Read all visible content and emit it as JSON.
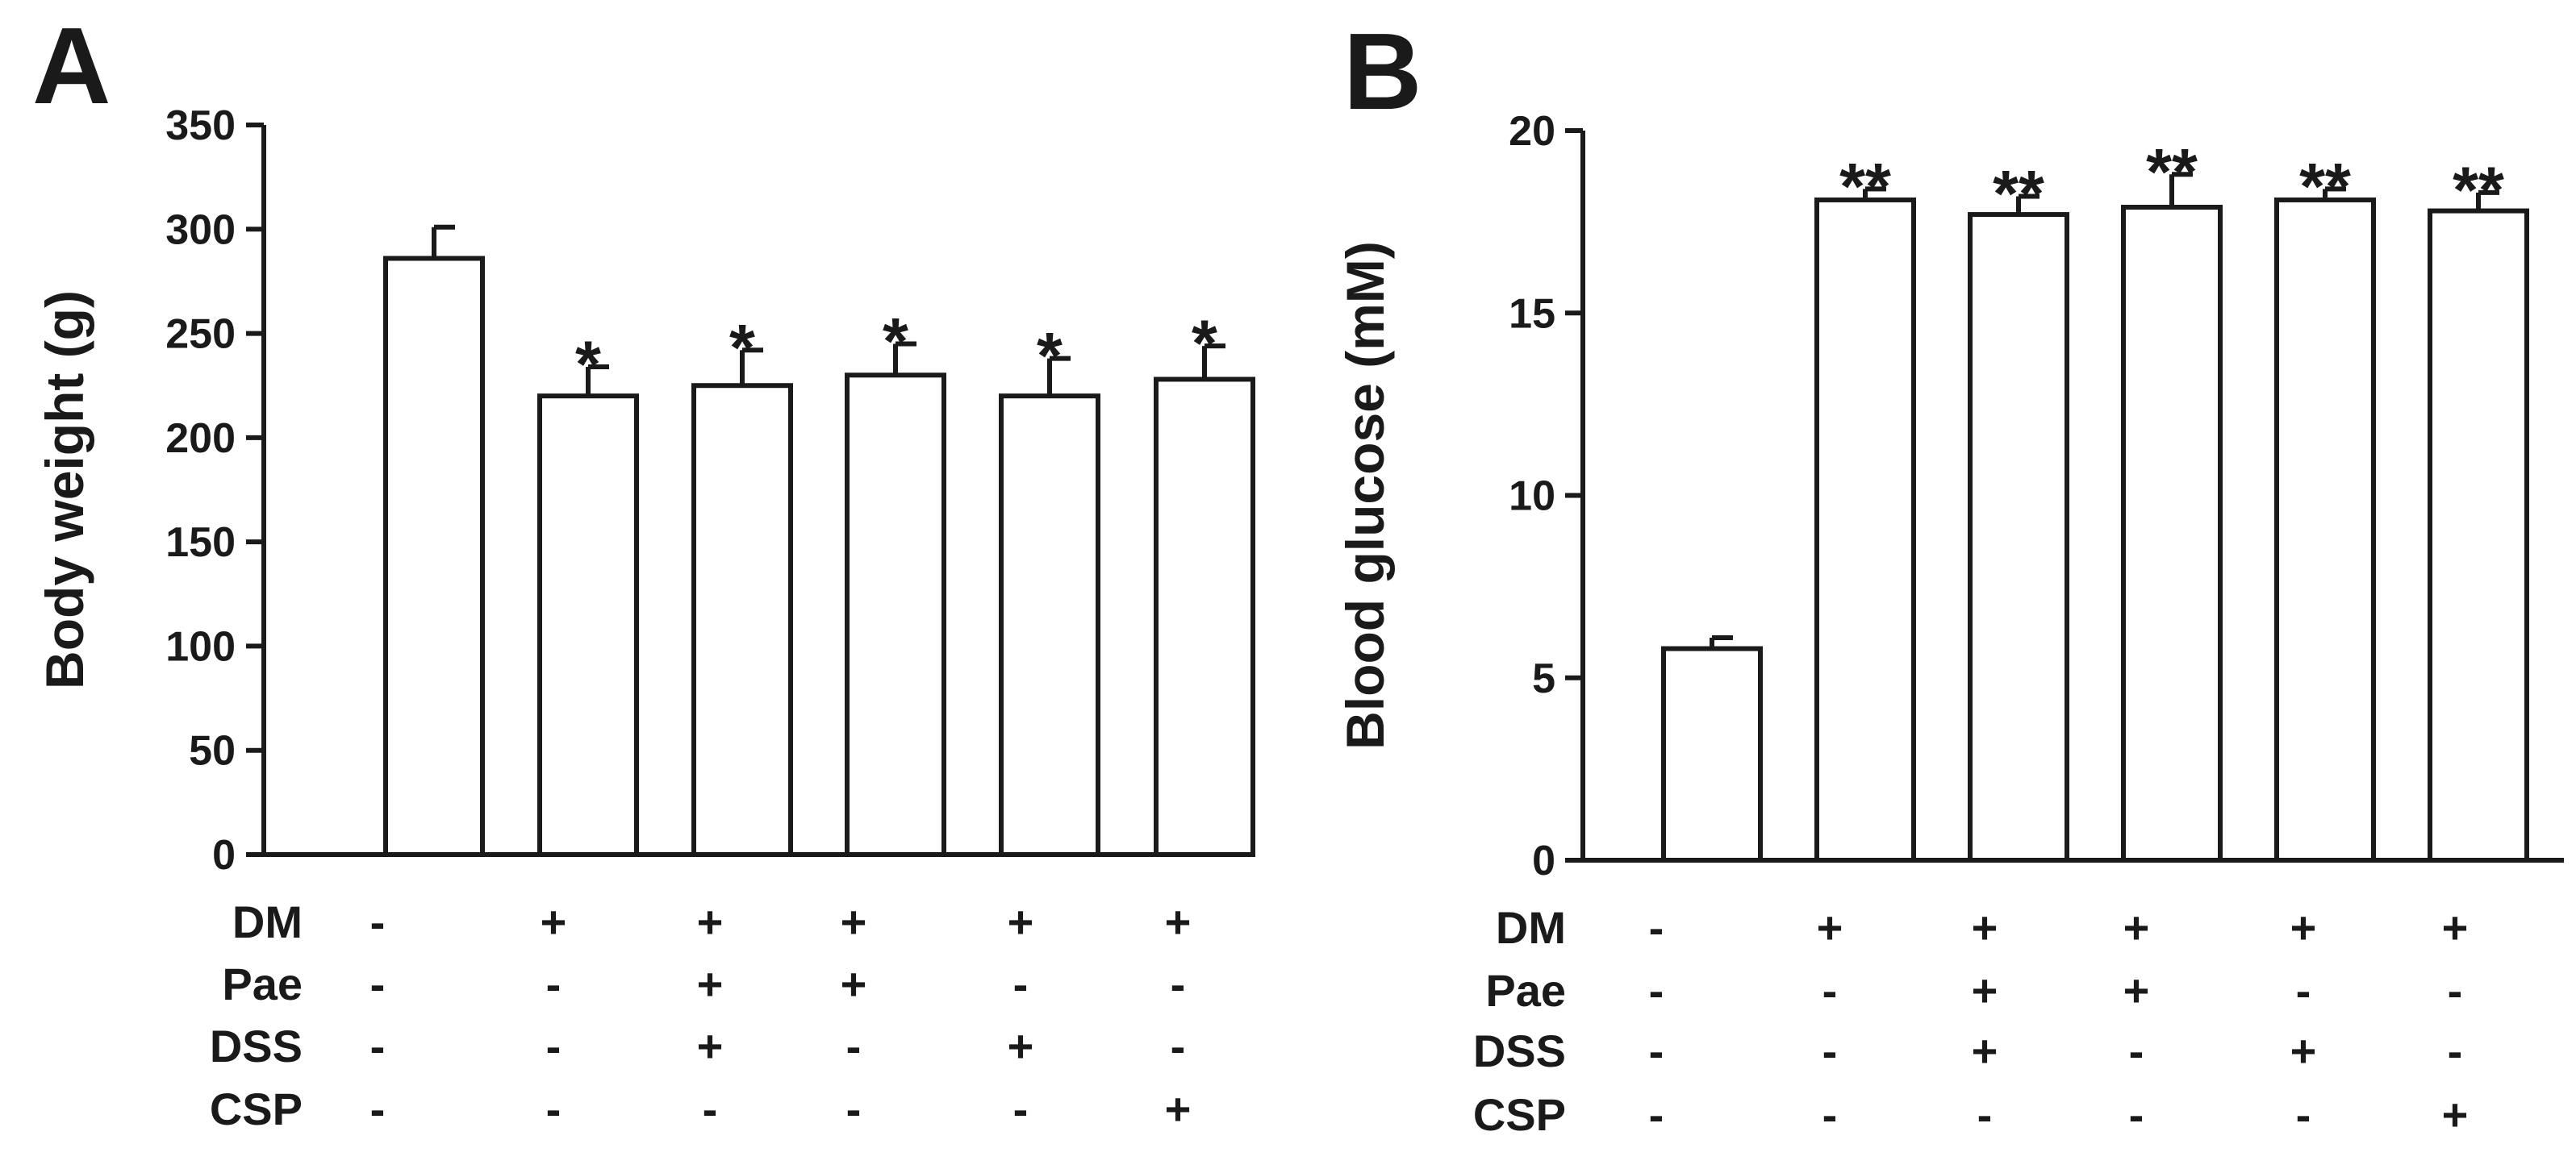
{
  "chart_data": [
    {
      "panel": "A",
      "type": "bar",
      "ylabel": "Body weight (g)",
      "ylim": [
        0,
        350
      ],
      "yticks": [
        0,
        50,
        100,
        150,
        200,
        250,
        300,
        350
      ],
      "values": [
        286,
        220,
        225,
        230,
        220,
        228
      ],
      "errors": [
        15,
        14,
        17,
        15,
        18,
        16
      ],
      "significance": [
        "",
        "*",
        "*",
        "*",
        "*",
        "*"
      ],
      "treatments": [
        {
          "name": "DM",
          "marks": [
            "-",
            "+",
            "+",
            "+",
            "+",
            "+"
          ]
        },
        {
          "name": "Pae",
          "marks": [
            "-",
            "-",
            "+",
            "+",
            "-",
            "-"
          ]
        },
        {
          "name": "DSS",
          "marks": [
            "-",
            "-",
            "+",
            "-",
            "+",
            "-"
          ]
        },
        {
          "name": "CSP",
          "marks": [
            "-",
            "-",
            "-",
            "-",
            "-",
            "+"
          ]
        }
      ]
    },
    {
      "panel": "B",
      "type": "bar",
      "ylabel": "Blood glucose (mM)",
      "ylim": [
        0,
        20
      ],
      "yticks": [
        0,
        5,
        10,
        15,
        20
      ],
      "values": [
        5.8,
        18.1,
        17.7,
        17.9,
        18.1,
        17.8
      ],
      "errors": [
        0.3,
        0.3,
        0.5,
        0.9,
        0.3,
        0.5
      ],
      "significance": [
        "",
        "**",
        "**",
        "**",
        "**",
        "**"
      ],
      "treatments": [
        {
          "name": "DM",
          "marks": [
            "-",
            "+",
            "+",
            "+",
            "+",
            "+"
          ]
        },
        {
          "name": "Pae",
          "marks": [
            "-",
            "-",
            "+",
            "+",
            "-",
            "-"
          ]
        },
        {
          "name": "DSS",
          "marks": [
            "-",
            "-",
            "+",
            "-",
            "+",
            "-"
          ]
        },
        {
          "name": "CSP",
          "marks": [
            "-",
            "-",
            "-",
            "-",
            "-",
            "+"
          ]
        }
      ]
    }
  ]
}
